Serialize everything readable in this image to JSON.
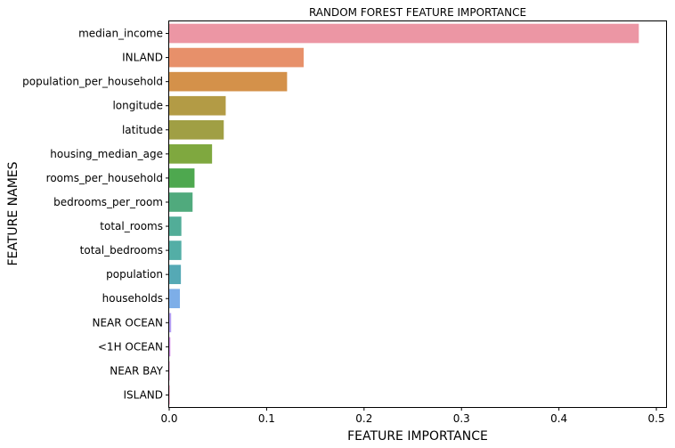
{
  "chart_data": {
    "type": "bar",
    "orientation": "horizontal",
    "title": "RANDOM FOREST FEATURE IMPORTANCE",
    "xlabel": "FEATURE IMPORTANCE",
    "ylabel": "FEATURE NAMES",
    "xlim": [
      0,
      0.51
    ],
    "xticks": [
      "0.0",
      "0.1",
      "0.2",
      "0.3",
      "0.4",
      "0.5"
    ],
    "xtick_values": [
      0,
      0.1,
      0.2,
      0.3,
      0.4,
      0.5
    ],
    "grid": false,
    "legend": "none",
    "categories": [
      "median_income",
      "INLAND",
      "population_per_household",
      "longitude",
      "latitude",
      "housing_median_age",
      "rooms_per_household",
      "bedrooms_per_room",
      "total_rooms",
      "total_bedrooms",
      "population",
      "households",
      "NEAR OCEAN",
      "<1H OCEAN",
      "NEAR BAY",
      "ISLAND"
    ],
    "values": [
      0.482,
      0.138,
      0.121,
      0.058,
      0.056,
      0.044,
      0.026,
      0.024,
      0.0125,
      0.0125,
      0.012,
      0.011,
      0.002,
      0.0012,
      0.0003,
      0.0001
    ],
    "colors": [
      "#ec96a4",
      "#e7906a",
      "#d4914a",
      "#b39b45",
      "#a09f44",
      "#7fa83f",
      "#4ea84f",
      "#50aa7d",
      "#52ad98",
      "#53aea6",
      "#55a9b5",
      "#7daee8",
      "#b29cf1",
      "#d28de6",
      "#e68fcd",
      "#ec91b5"
    ]
  }
}
